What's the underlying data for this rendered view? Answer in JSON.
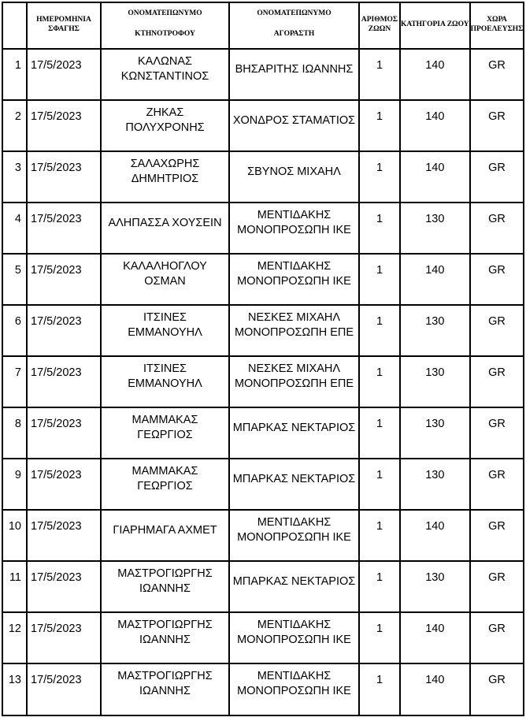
{
  "document": {
    "background": "#ffffff",
    "border_color": "#000000",
    "text_color": "#000000"
  },
  "table": {
    "header": {
      "index": [],
      "date": [
        "ΗΜΕΡΟΜΗΝΙΑ",
        "ΣΦΑΓΗΣ"
      ],
      "breeder": [
        "ΟΝΟΜΑΤΕΠΩΝΥΜΟ",
        "ΚΤΗΝΟΤΡΟΦΟΥ"
      ],
      "buyer": [
        "ΟΝΟΜΑΤΕΠΩΝΥΜΟ",
        "ΑΓΟΡΑΣΤΗ"
      ],
      "count": [
        "ΑΡΙΘΜΟΣ",
        "ΖΩΩΝ"
      ],
      "category": [
        "ΚΑΤΗΓΟΡΙΑ ΖΩΟΥ"
      ],
      "country": [
        "ΧΩΡΑ",
        "ΠΡΟΕΛΕΥΣΗΣ"
      ]
    },
    "rows": [
      {
        "index": "1",
        "date": "17/5/2023",
        "breeder": [
          "ΚΑΛΩΝΑΣ",
          "ΚΩΝΣΤΑΝΤΙΝΟΣ"
        ],
        "buyer": [
          "ΒΗΣΑΡΙΤΗΣ ΙΩΑΝΝΗΣ"
        ],
        "count": "1",
        "category": "140",
        "country": "GR"
      },
      {
        "index": "2",
        "date": "17/5/2023",
        "breeder": [
          "ΖΗΚΑΣ",
          "ΠΟΛΥΧΡΟΝΗΣ"
        ],
        "buyer": [
          "ΧΟΝΔΡΟΣ ΣΤΑΜΑΤΙΟΣ"
        ],
        "count": "1",
        "category": "140",
        "country": "GR"
      },
      {
        "index": "3",
        "date": "17/5/2023",
        "breeder": [
          "ΣΑΛΑΧΩΡΗΣ",
          "ΔΗΜΗΤΡΙΟΣ"
        ],
        "buyer": [
          "ΣΒΥΝΟΣ ΜΙΧΑΗΛ"
        ],
        "count": "1",
        "category": "140",
        "country": "GR"
      },
      {
        "index": "4",
        "date": "17/5/2023",
        "breeder": [
          "ΑΛΗΠΑΣΣΑ ΧΟΥΣΕΙΝ"
        ],
        "buyer": [
          "ΜΕΝΤΙΔΑΚΗΣ",
          "ΜΟΝΟΠΡΟΣΩΠΗ ΙΚΕ"
        ],
        "count": "1",
        "category": "130",
        "country": "GR"
      },
      {
        "index": "5",
        "date": "17/5/2023",
        "breeder": [
          "ΚΑΛΑΛΗΟΓΛΟΥ",
          "ΟΣΜΑΝ"
        ],
        "buyer": [
          "ΜΕΝΤΙΔΑΚΗΣ",
          "ΜΟΝΟΠΡΟΣΩΠΗ ΙΚΕ"
        ],
        "count": "1",
        "category": "140",
        "country": "GR"
      },
      {
        "index": "6",
        "date": "17/5/2023",
        "breeder": [
          "ΙΤΣΙΝΕΣ",
          "ΕΜΜΑΝΟΥΗΛ"
        ],
        "buyer": [
          "ΝΕΣΚΕΣ ΜΙΧΑΗΛ",
          "ΜΟΝΟΠΡΟΣΩΠΗ ΕΠΕ"
        ],
        "count": "1",
        "category": "130",
        "country": "GR"
      },
      {
        "index": "7",
        "date": "17/5/2023",
        "breeder": [
          "ΙΤΣΙΝΕΣ",
          "ΕΜΜΑΝΟΥΗΛ"
        ],
        "buyer": [
          "ΝΕΣΚΕΣ ΜΙΧΑΗΛ",
          "ΜΟΝΟΠΡΟΣΩΠΗ ΕΠΕ"
        ],
        "count": "1",
        "category": "130",
        "country": "GR"
      },
      {
        "index": "8",
        "date": "17/5/2023",
        "breeder": [
          "ΜΑΜΜΑΚΑΣ",
          "ΓΕΩΡΓΙΟΣ"
        ],
        "buyer": [
          "ΜΠΑΡΚΑΣ ΝΕΚΤΑΡΙΟΣ"
        ],
        "count": "1",
        "category": "130",
        "country": "GR"
      },
      {
        "index": "9",
        "date": "17/5/2023",
        "breeder": [
          "ΜΑΜΜΑΚΑΣ",
          "ΓΕΩΡΓΙΟΣ"
        ],
        "buyer": [
          "ΜΠΑΡΚΑΣ ΝΕΚΤΑΡΙΟΣ"
        ],
        "count": "1",
        "category": "130",
        "country": "GR"
      },
      {
        "index": "10",
        "date": "17/5/2023",
        "breeder": [
          "ΓΙΑΡΗΜΑΓΑ ΑΧΜΕΤ"
        ],
        "buyer": [
          "ΜΕΝΤΙΔΑΚΗΣ",
          "ΜΟΝΟΠΡΟΣΩΠΗ ΙΚΕ"
        ],
        "count": "1",
        "category": "140",
        "country": "GR"
      },
      {
        "index": "11",
        "date": "17/5/2023",
        "breeder": [
          "ΜΑΣΤΡΟΓΙΩΡΓΗΣ",
          "ΙΩΑΝΝΗΣ"
        ],
        "buyer": [
          "ΜΠΑΡΚΑΣ ΝΕΚΤΑΡΙΟΣ"
        ],
        "count": "1",
        "category": "130",
        "country": "GR"
      },
      {
        "index": "12",
        "date": "17/5/2023",
        "breeder": [
          "ΜΑΣΤΡΟΓΙΩΡΓΗΣ",
          "ΙΩΑΝΝΗΣ"
        ],
        "buyer": [
          "ΜΕΝΤΙΔΑΚΗΣ",
          "ΜΟΝΟΠΡΟΣΩΠΗ ΙΚΕ"
        ],
        "count": "1",
        "category": "140",
        "country": "GR"
      },
      {
        "index": "13",
        "date": "17/5/2023",
        "breeder": [
          "ΜΑΣΤΡΟΓΙΩΡΓΗΣ",
          "ΙΩΑΝΝΗΣ"
        ],
        "buyer": [
          "ΜΕΝΤΙΔΑΚΗΣ",
          "ΜΟΝΟΠΡΟΣΩΠΗ ΙΚΕ"
        ],
        "count": "1",
        "category": "140",
        "country": "GR"
      }
    ]
  }
}
